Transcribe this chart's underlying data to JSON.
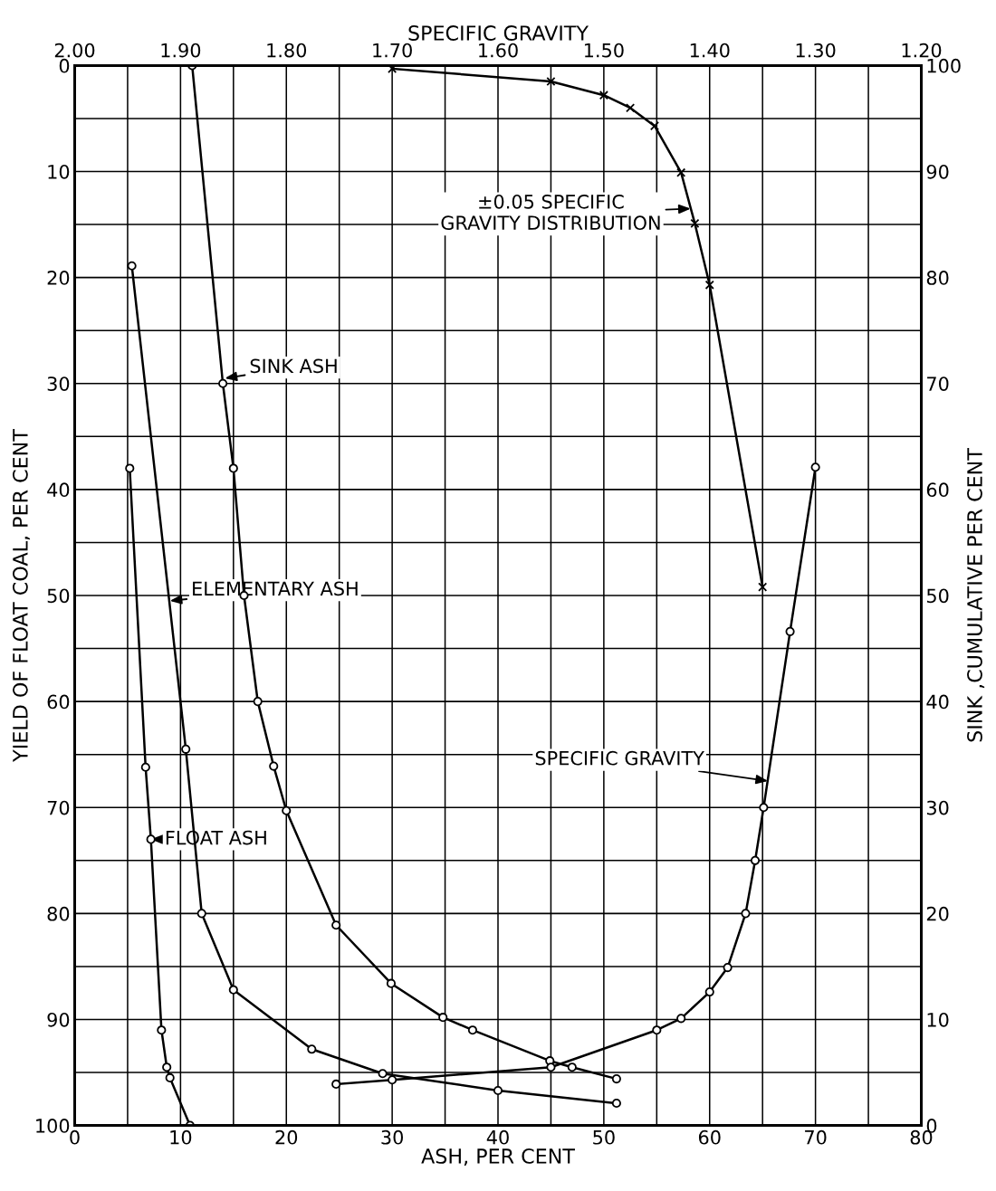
{
  "chart_data": {
    "type": "line",
    "xlabel": "ASH, PER CENT",
    "ylabel": "YIELD OF FLOAT COAL, PER CENT",
    "y2label": "SINK ,CUMULATIVE PER CENT",
    "x2label": "SPECIFIC GRAVITY",
    "xlim": [
      0,
      80
    ],
    "xticks": [
      0,
      {
        "value": 5,
        "label": null
      },
      10,
      {
        "value": 15,
        "label": null
      },
      20,
      {
        "value": 25,
        "label": null
      },
      30,
      {
        "value": 35,
        "label": null
      },
      40,
      {
        "value": 45,
        "label": null
      },
      50,
      {
        "value": 55,
        "label": null
      },
      60,
      {
        "value": 65,
        "label": null
      },
      70,
      {
        "value": 75,
        "label": null
      },
      80
    ],
    "ylim": [
      100,
      0
    ],
    "yticks": [
      0,
      {
        "value": 5,
        "label": null
      },
      10,
      {
        "value": 15,
        "label": null
      },
      20,
      {
        "value": 25,
        "label": null
      },
      30,
      {
        "value": 35,
        "label": null
      },
      40,
      {
        "value": 45,
        "label": null
      },
      50,
      {
        "value": 55,
        "label": null
      },
      60,
      {
        "value": 65,
        "label": null
      },
      70,
      {
        "value": 75,
        "label": null
      },
      80,
      {
        "value": 85,
        "label": null
      },
      90,
      {
        "value": 95,
        "label": null
      },
      100
    ],
    "y2lim": [
      0,
      100
    ],
    "y2ticks": [
      0,
      10,
      20,
      30,
      40,
      50,
      60,
      70,
      80,
      90,
      100
    ],
    "x2lim": [
      2.0,
      1.2
    ],
    "x2ticks": [
      {
        "value": 2.0,
        "label": "2.00"
      },
      {
        "value": 1.9,
        "label": "1.90"
      },
      {
        "value": 1.8,
        "label": "1.80"
      },
      {
        "value": 1.7,
        "label": "1.70"
      },
      {
        "value": 1.6,
        "label": "1.60"
      },
      {
        "value": 1.5,
        "label": "1.50"
      },
      {
        "value": 1.4,
        "label": "1.40"
      },
      {
        "value": 1.3,
        "label": "1.30"
      },
      {
        "value": 1.2,
        "label": "1.20"
      }
    ],
    "grid": true,
    "marker": "circle",
    "line_style": "solid",
    "series": [
      {
        "color": "#000000",
        "x": [
          5.2,
          6.7,
          7.2,
          8.2,
          8.7,
          9.0,
          10.9
        ],
        "values": [
          38,
          66.2,
          73,
          91.0,
          94.5,
          95.5,
          100
        ]
      },
      {
        "color": "#000000",
        "x": [
          5.4,
          10.5,
          12.0,
          15.0,
          22.4,
          29.1,
          40.0,
          51.2
        ],
        "values": [
          18.9,
          64.5,
          80,
          87.2,
          92.8,
          95.1,
          96.7,
          97.9
        ]
      },
      {
        "color": "#000000",
        "x": [
          11.1,
          14.0,
          15.0,
          16.0,
          17.3,
          18.8,
          20.0,
          24.7,
          29.9,
          34.8,
          37.6,
          44.9,
          47.0,
          51.2
        ],
        "values": [
          0,
          30,
          38,
          50,
          60,
          66.1,
          70.3,
          81.1,
          86.6,
          89.8,
          91.0,
          93.9,
          94.5,
          95.6
        ]
      },
      {
        "color": "#000000",
        "axis": "x2",
        "x": [
          1.753,
          1.7,
          1.55,
          1.45,
          1.427,
          1.4,
          1.383,
          1.366,
          1.357,
          1.349,
          1.324,
          1.3
        ],
        "values": [
          96.1,
          95.7,
          94.5,
          91.0,
          89.9,
          87.4,
          85.1,
          80,
          75,
          70,
          53.4,
          37.9
        ]
      },
      {
        "color": "#000000",
        "axis": "x2",
        "marker": "cross",
        "x": [
          1.7,
          1.55,
          1.5,
          1.475,
          1.452,
          1.427,
          1.414,
          1.4,
          1.35
        ],
        "values": [
          0.3,
          1.5,
          2.8,
          4.0,
          5.7,
          10.1,
          14.9,
          20.7,
          49.2
        ]
      }
    ],
    "annotations": [
      {
        "text": "±0.05 SPECIFIC\nGRAVITY DISTRIBUTION",
        "x": 58.2,
        "y": 13.5
      },
      {
        "text": "SINK ASH",
        "x": 14.2,
        "y": 29.5
      },
      {
        "text": "ELEMENTARY ASH",
        "x": 9.0,
        "y": 50.5
      },
      {
        "text": "FLOAT ASH",
        "x": 7.2,
        "y": 73
      },
      {
        "text": "SPECIFIC GRAVITY",
        "x": 65.5,
        "y": 67.5
      }
    ]
  }
}
